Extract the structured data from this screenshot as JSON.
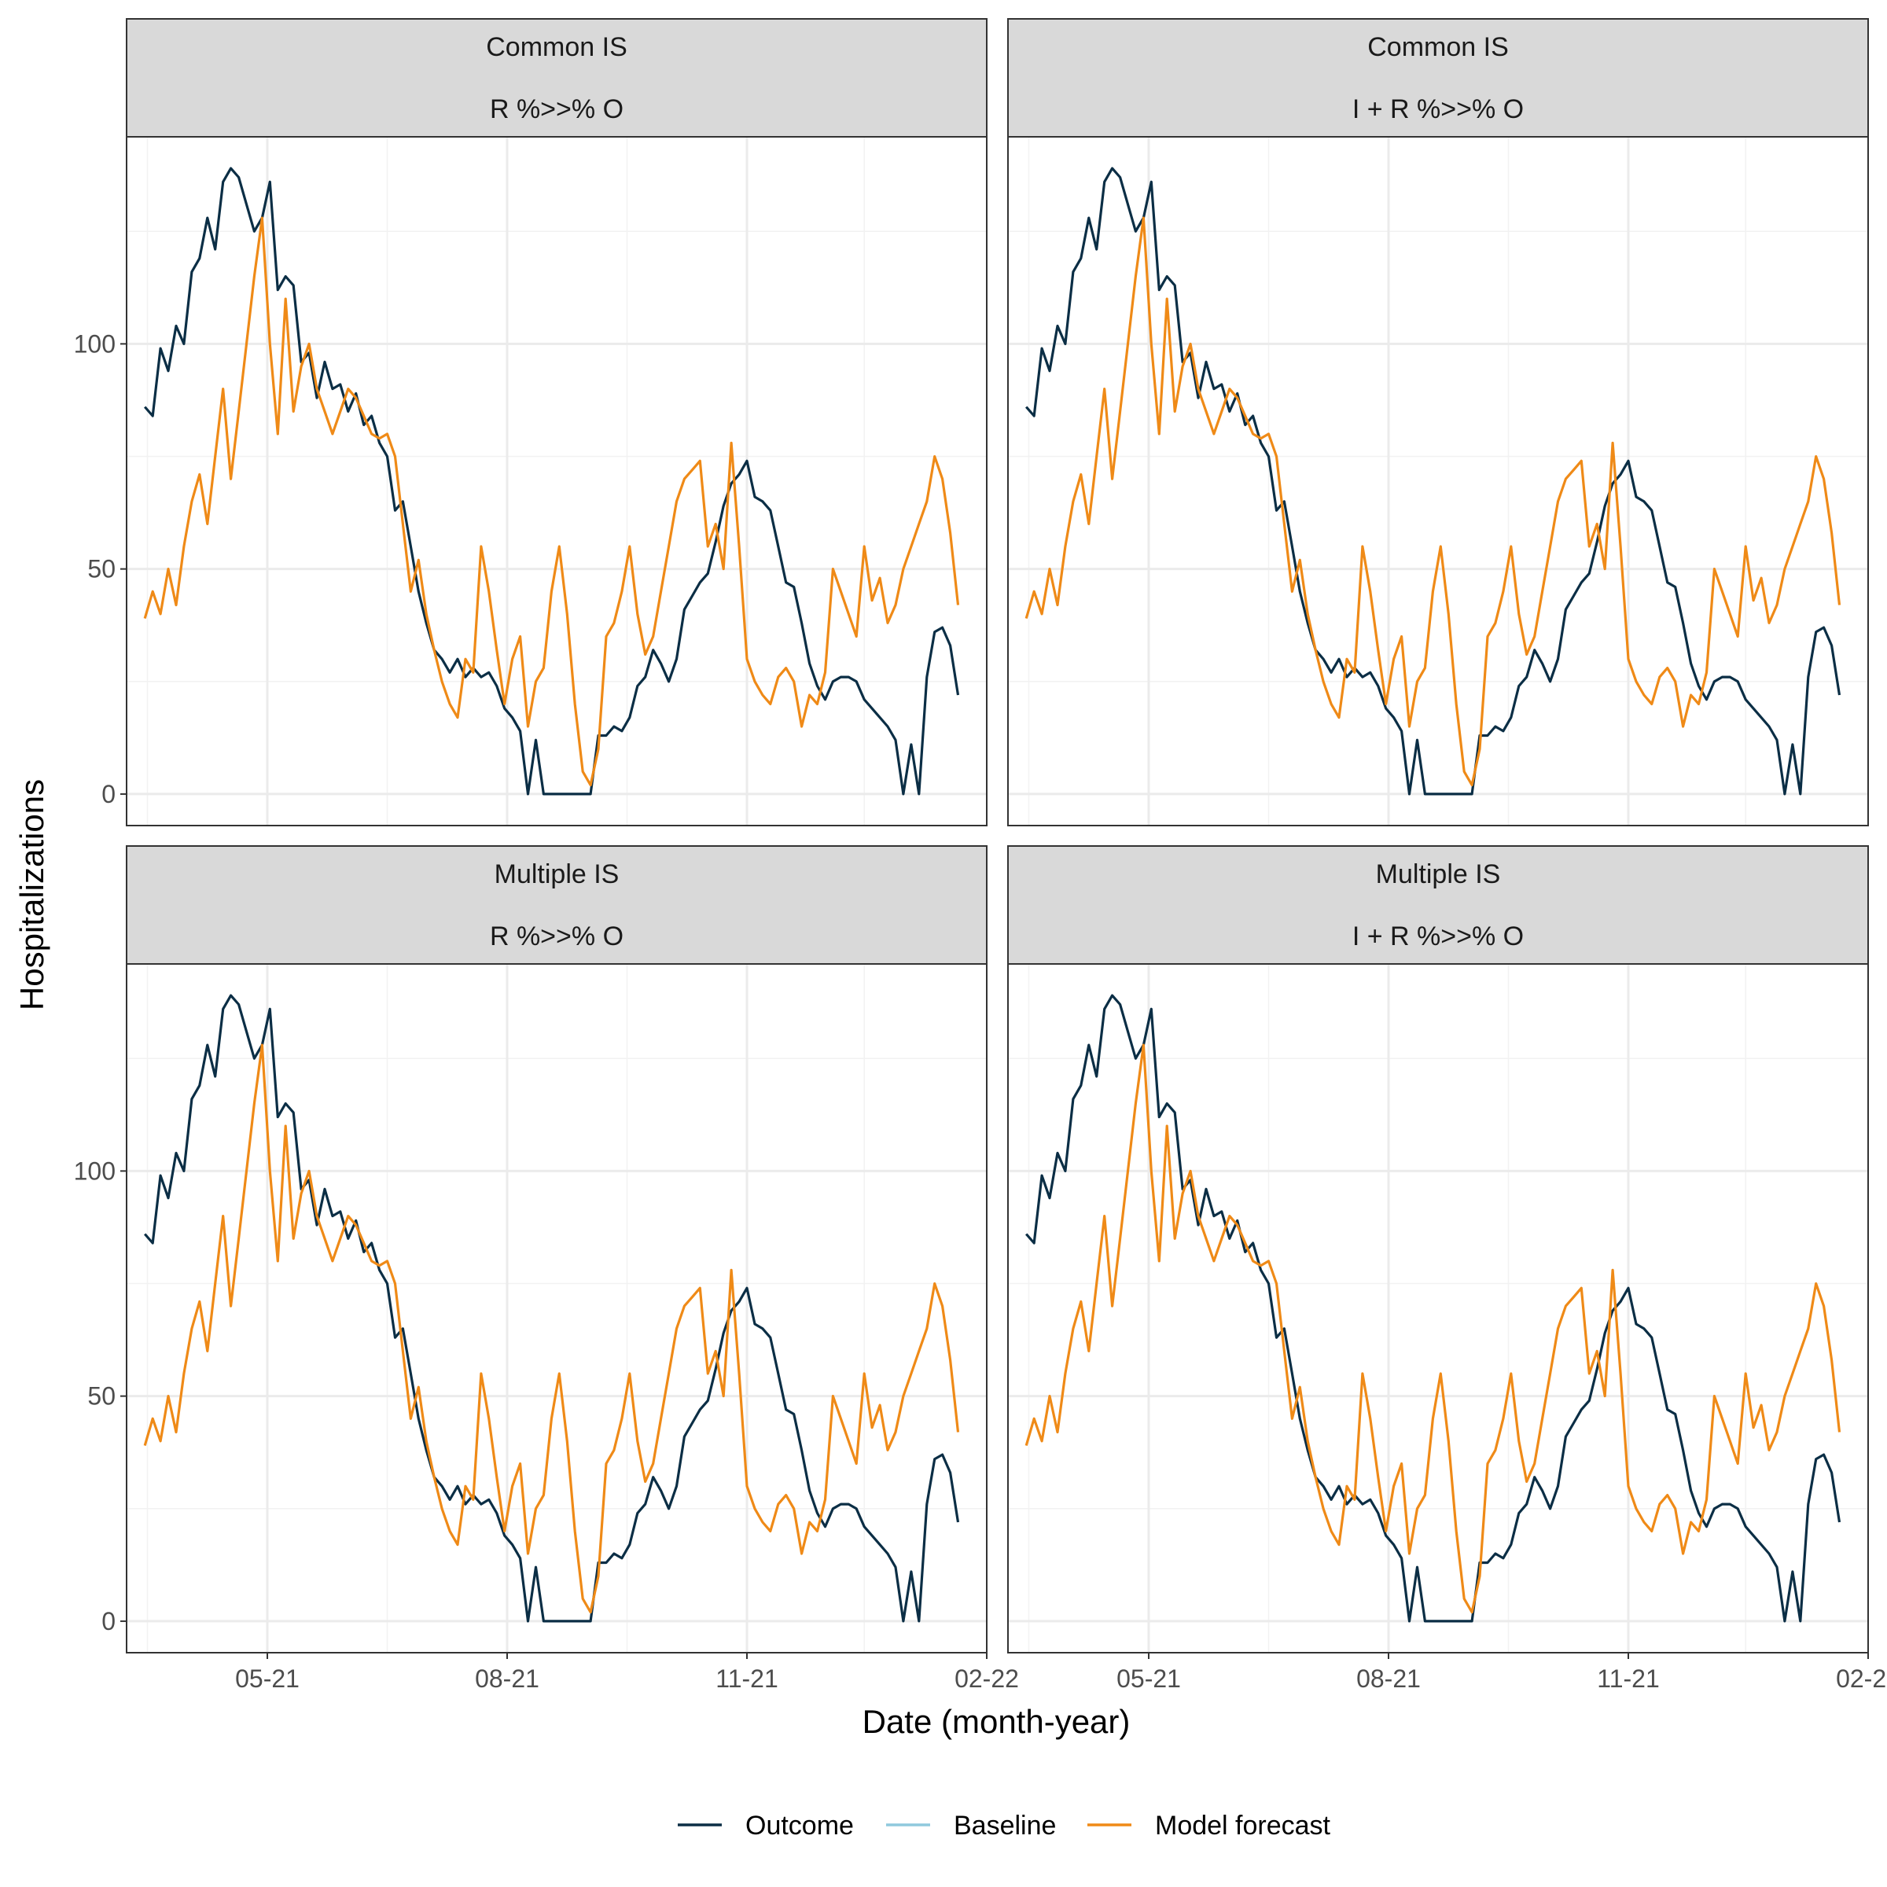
{
  "chart_data": {
    "type": "line",
    "xlabel": "Date (month-year)",
    "ylabel": "Hospitalizations",
    "x_ticks": [
      "05-21",
      "08-21",
      "11-21",
      "02-22"
    ],
    "x_range": [
      "2021-03-08",
      "2022-02-01"
    ],
    "y_ticks": [
      0,
      50,
      100
    ],
    "ylim": [
      -7,
      146
    ],
    "grid": true,
    "legend_position": "bottom",
    "colors": {
      "Outcome": "#0b2e45",
      "Baseline": "#8fc9dd",
      "Model forecast": "#ef8a17"
    },
    "legend": [
      "Outcome",
      "Baseline",
      "Model forecast"
    ],
    "facets": [
      {
        "row": "Common IS",
        "col": "R %>>% O"
      },
      {
        "row": "Common IS",
        "col": "I + R %>>% O"
      },
      {
        "row": "Multiple IS",
        "col": "R %>>% O"
      },
      {
        "row": "Multiple IS",
        "col": "I + R %>>% O"
      }
    ],
    "series": [
      {
        "name": "Outcome",
        "x": [
          "2021-03-15",
          "2021-03-18",
          "2021-03-21",
          "2021-03-24",
          "2021-03-27",
          "2021-03-30",
          "2021-04-02",
          "2021-04-05",
          "2021-04-08",
          "2021-04-11",
          "2021-04-14",
          "2021-04-17",
          "2021-04-20",
          "2021-04-23",
          "2021-04-26",
          "2021-04-29",
          "2021-05-02",
          "2021-05-05",
          "2021-05-08",
          "2021-05-11",
          "2021-05-14",
          "2021-05-17",
          "2021-05-20",
          "2021-05-23",
          "2021-05-26",
          "2021-05-29",
          "2021-06-01",
          "2021-06-04",
          "2021-06-07",
          "2021-06-10",
          "2021-06-13",
          "2021-06-16",
          "2021-06-19",
          "2021-06-22",
          "2021-06-25",
          "2021-06-28",
          "2021-07-01",
          "2021-07-04",
          "2021-07-07",
          "2021-07-10",
          "2021-07-13",
          "2021-07-16",
          "2021-07-19",
          "2021-07-22",
          "2021-07-25",
          "2021-07-28",
          "2021-07-31",
          "2021-08-03",
          "2021-08-06",
          "2021-08-09",
          "2021-08-12",
          "2021-08-15",
          "2021-08-18",
          "2021-08-21",
          "2021-08-24",
          "2021-08-27",
          "2021-08-30",
          "2021-09-02",
          "2021-09-05",
          "2021-09-08",
          "2021-09-11",
          "2021-09-14",
          "2021-09-17",
          "2021-09-20",
          "2021-09-23",
          "2021-09-26",
          "2021-09-29",
          "2021-10-02",
          "2021-10-05",
          "2021-10-08",
          "2021-10-11",
          "2021-10-14",
          "2021-10-17",
          "2021-10-20",
          "2021-10-23",
          "2021-10-26",
          "2021-10-29",
          "2021-11-01",
          "2021-11-04",
          "2021-11-07",
          "2021-11-10",
          "2021-11-13",
          "2021-11-16",
          "2021-11-19",
          "2021-11-22",
          "2021-11-25",
          "2021-11-28",
          "2021-12-01",
          "2021-12-04",
          "2021-12-07",
          "2021-12-10",
          "2021-12-13",
          "2021-12-16",
          "2021-12-19",
          "2021-12-22",
          "2021-12-25",
          "2021-12-28",
          "2021-12-31",
          "2022-01-03",
          "2022-01-06",
          "2022-01-09",
          "2022-01-12",
          "2022-01-15",
          "2022-01-18",
          "2022-01-21"
        ],
        "values": [
          86,
          84,
          99,
          94,
          104,
          100,
          116,
          119,
          128,
          121,
          136,
          139,
          137,
          131,
          125,
          128,
          136,
          112,
          115,
          113,
          96,
          98,
          88,
          96,
          90,
          91,
          85,
          89,
          82,
          84,
          78,
          75,
          63,
          65,
          55,
          45,
          38,
          32,
          30,
          27,
          30,
          26,
          28,
          26,
          27,
          24,
          19,
          17,
          14,
          0,
          12,
          0,
          0,
          0,
          0,
          0,
          0,
          0,
          13,
          13,
          15,
          14,
          17,
          24,
          26,
          32,
          29,
          25,
          30,
          41,
          44,
          47,
          49,
          56,
          64,
          69,
          71,
          74,
          66,
          65,
          63,
          55,
          47,
          46,
          38,
          29,
          24,
          21,
          25,
          26,
          26,
          25,
          21,
          19,
          17,
          15,
          12,
          0,
          11,
          0,
          26,
          36,
          37,
          33,
          22
        ]
      },
      {
        "name": "Baseline",
        "x": [],
        "values": []
      },
      {
        "name": "Model forecast",
        "x": [
          "2021-03-15",
          "2021-03-18",
          "2021-03-21",
          "2021-03-24",
          "2021-03-27",
          "2021-03-30",
          "2021-04-02",
          "2021-04-05",
          "2021-04-08",
          "2021-04-11",
          "2021-04-14",
          "2021-04-17",
          "2021-04-20",
          "2021-04-23",
          "2021-04-26",
          "2021-04-29",
          "2021-05-02",
          "2021-05-05",
          "2021-05-08",
          "2021-05-11",
          "2021-05-14",
          "2021-05-17",
          "2021-05-20",
          "2021-05-23",
          "2021-05-26",
          "2021-05-29",
          "2021-06-01",
          "2021-06-04",
          "2021-06-07",
          "2021-06-10",
          "2021-06-13",
          "2021-06-16",
          "2021-06-19",
          "2021-06-22",
          "2021-06-25",
          "2021-06-28",
          "2021-07-01",
          "2021-07-04",
          "2021-07-07",
          "2021-07-10",
          "2021-07-13",
          "2021-07-16",
          "2021-07-19",
          "2021-07-22",
          "2021-07-25",
          "2021-07-28",
          "2021-07-31",
          "2021-08-03",
          "2021-08-06",
          "2021-08-09",
          "2021-08-12",
          "2021-08-15",
          "2021-08-18",
          "2021-08-21",
          "2021-08-24",
          "2021-08-27",
          "2021-08-30",
          "2021-09-02",
          "2021-09-05",
          "2021-09-08",
          "2021-09-11",
          "2021-09-14",
          "2021-09-17",
          "2021-09-20",
          "2021-09-23",
          "2021-09-26",
          "2021-09-29",
          "2021-10-02",
          "2021-10-05",
          "2021-10-08",
          "2021-10-11",
          "2021-10-14",
          "2021-10-17",
          "2021-10-20",
          "2021-10-23",
          "2021-10-26",
          "2021-10-29",
          "2021-11-01",
          "2021-11-04",
          "2021-11-07",
          "2021-11-10",
          "2021-11-13",
          "2021-11-16",
          "2021-11-19",
          "2021-11-22",
          "2021-11-25",
          "2021-11-28",
          "2021-12-01",
          "2021-12-04",
          "2021-12-07",
          "2021-12-10",
          "2021-12-13",
          "2021-12-16",
          "2021-12-19",
          "2021-12-22",
          "2021-12-25",
          "2021-12-28",
          "2021-12-31",
          "2022-01-03",
          "2022-01-06",
          "2022-01-09",
          "2022-01-12",
          "2022-01-15",
          "2022-01-18",
          "2022-01-21"
        ],
        "values": [
          39,
          45,
          40,
          50,
          42,
          55,
          65,
          71,
          60,
          75,
          90,
          70,
          85,
          100,
          115,
          128,
          100,
          80,
          110,
          85,
          95,
          100,
          90,
          85,
          80,
          85,
          90,
          88,
          84,
          80,
          79,
          80,
          75,
          60,
          45,
          52,
          40,
          32,
          25,
          20,
          17,
          30,
          27,
          55,
          45,
          32,
          20,
          30,
          35,
          15,
          25,
          28,
          45,
          55,
          40,
          20,
          5,
          2,
          10,
          35,
          38,
          45,
          55,
          40,
          31,
          35,
          45,
          55,
          65,
          70,
          72,
          74,
          55,
          60,
          50,
          78,
          55,
          30,
          25,
          22,
          20,
          26,
          28,
          25,
          15,
          22,
          20,
          27,
          50,
          45,
          40,
          35,
          55,
          43,
          48,
          38,
          42,
          50,
          55,
          60,
          65,
          75,
          70,
          58,
          42
        ]
      }
    ]
  }
}
